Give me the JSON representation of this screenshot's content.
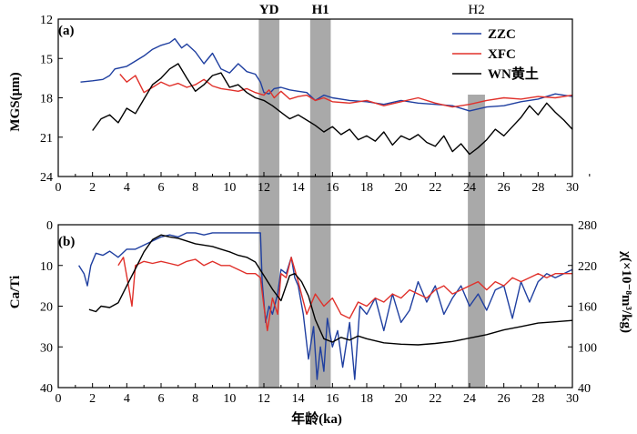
{
  "chart_data": [
    {
      "panel_label": "(a)",
      "type": "line",
      "ylabel": "MGS(μm)",
      "xlim": [
        0,
        30
      ],
      "ylim": [
        12,
        24
      ],
      "y_inverted": true,
      "yticks": [
        "12",
        "15",
        "18",
        "21",
        "24"
      ],
      "legend": {
        "placement": "top-right",
        "entries": [
          "ZZC",
          "XFC",
          "WN黄土"
        ]
      },
      "series": [
        {
          "name": "ZZC",
          "color": "#1f3fa0",
          "x": [
            1.3,
            2,
            2.6,
            3,
            3.3,
            4,
            4.5,
            5,
            5.5,
            6,
            6.5,
            6.8,
            7.2,
            7.5,
            8,
            8.5,
            9,
            9.5,
            10,
            10.5,
            11,
            11.5,
            11.8,
            12,
            12.3,
            12.6,
            13,
            13.5,
            14,
            14.5,
            15,
            15.5,
            16,
            17,
            18,
            19,
            20,
            21,
            22,
            23,
            24,
            25,
            26,
            27,
            28,
            29,
            30
          ],
          "y": [
            16.8,
            16.7,
            16.6,
            16.3,
            15.8,
            15.6,
            15.2,
            14.8,
            14.3,
            14.0,
            13.8,
            13.5,
            14.2,
            13.9,
            14.5,
            15.4,
            14.6,
            15.8,
            16.1,
            15.4,
            16.0,
            16.2,
            16.8,
            17.6,
            17.7,
            17.3,
            17.2,
            17.4,
            17.5,
            17.6,
            18.2,
            17.8,
            18.0,
            18.2,
            18.3,
            18.5,
            18.2,
            18.4,
            18.5,
            18.6,
            19.0,
            18.7,
            18.6,
            18.3,
            18.1,
            17.7,
            17.9
          ]
        },
        {
          "name": "XFC",
          "color": "#e0302a",
          "x": [
            3.6,
            4,
            4.5,
            5,
            5.5,
            6,
            6.5,
            7,
            7.5,
            8,
            8.5,
            9,
            9.5,
            10,
            10.5,
            11,
            11.5,
            12,
            12.3,
            12.6,
            13,
            13.5,
            14,
            14.5,
            15,
            15.5,
            16,
            17,
            18,
            19,
            20,
            21,
            22,
            23,
            24,
            25,
            26,
            27,
            28,
            29,
            30
          ],
          "y": [
            16.2,
            16.8,
            16.3,
            17.6,
            17.2,
            16.8,
            17.1,
            16.9,
            17.2,
            17.0,
            16.6,
            17.1,
            17.3,
            17.4,
            17.5,
            17.3,
            17.6,
            17.8,
            17.4,
            18.0,
            17.5,
            18.1,
            17.9,
            17.8,
            18.2,
            18.0,
            18.3,
            18.4,
            18.2,
            18.6,
            18.3,
            18.0,
            18.4,
            18.7,
            18.5,
            18.2,
            18.0,
            18.1,
            17.9,
            18.0,
            17.8
          ]
        },
        {
          "name": "WN黄土",
          "color": "#000000",
          "x": [
            2,
            2.5,
            3,
            3.5,
            4,
            4.5,
            5,
            5.5,
            6,
            6.5,
            7,
            7.5,
            8,
            8.5,
            9,
            9.5,
            10,
            10.5,
            11,
            11.5,
            12,
            12.5,
            13,
            13.5,
            14,
            14.5,
            15,
            15.5,
            16,
            16.5,
            17,
            17.5,
            18,
            18.5,
            19,
            19.5,
            20,
            20.5,
            21,
            21.5,
            22,
            22.5,
            23,
            23.5,
            24,
            24.5,
            25,
            25.5,
            26,
            26.5,
            27,
            27.5,
            28,
            28.5,
            29,
            29.5,
            30
          ],
          "y": [
            20.5,
            19.6,
            19.3,
            19.9,
            18.8,
            19.2,
            18.1,
            17.0,
            16.5,
            15.8,
            15.4,
            16.5,
            17.5,
            17.0,
            16.3,
            16.1,
            17.2,
            17.0,
            17.6,
            18.0,
            18.2,
            18.6,
            19.1,
            19.6,
            19.3,
            19.7,
            20.1,
            20.6,
            20.2,
            20.8,
            20.4,
            21.2,
            20.9,
            21.3,
            20.6,
            21.6,
            20.9,
            21.2,
            20.8,
            21.4,
            21.7,
            20.9,
            22.1,
            21.5,
            22.3,
            21.8,
            21.2,
            20.4,
            20.9,
            20.2,
            19.5,
            18.6,
            19.3,
            18.4,
            19.1,
            19.7,
            20.4
          ]
        }
      ]
    },
    {
      "panel_label": "(b)",
      "type": "line",
      "ylabel": "Ca/Ti",
      "y2label": "χ(×10⁻⁸m³/kg)",
      "xlabel": "年龄(ka)",
      "xlim": [
        0,
        30
      ],
      "ylim": [
        0,
        40
      ],
      "y_inverted": true,
      "y2lim": [
        40,
        280
      ],
      "yticks": [
        "0",
        "10",
        "20",
        "30",
        "40"
      ],
      "y2ticks": [
        "40",
        "100",
        "160",
        "220",
        "280"
      ],
      "series": [
        {
          "name": "ZZC",
          "axis": "left",
          "color": "#1f3fa0",
          "x": [
            1.2,
            1.5,
            1.7,
            1.9,
            2.2,
            2.6,
            3,
            3.5,
            4,
            4.5,
            5,
            5.5,
            6,
            6.5,
            7,
            7.5,
            8,
            8.5,
            9,
            9.5,
            10,
            10.5,
            11,
            11.5,
            11.8,
            11.9,
            12.1,
            12.3,
            12.5,
            12.8,
            13,
            13.3,
            13.6,
            13.8,
            14,
            14.3,
            14.6,
            14.9,
            15.1,
            15.3,
            15.5,
            15.7,
            16,
            16.3,
            16.6,
            17,
            17.3,
            17.6,
            18,
            18.5,
            19,
            19.5,
            20,
            20.5,
            21,
            21.5,
            22,
            22.5,
            23,
            23.5,
            24,
            24.5,
            25,
            25.5,
            26,
            26.5,
            27,
            27.5,
            28,
            28.5,
            29,
            29.5,
            30
          ],
          "y": [
            10,
            12,
            15,
            10,
            7,
            7.5,
            6.5,
            8,
            6,
            6,
            5,
            4,
            3,
            2.5,
            3,
            2,
            2,
            2.5,
            2,
            2,
            2,
            2,
            2,
            2,
            2,
            14,
            24,
            20,
            22,
            17,
            11,
            12,
            8,
            13,
            15,
            22,
            33,
            25,
            38,
            30,
            36,
            23,
            30,
            26,
            35,
            24,
            38,
            20,
            22,
            18,
            26,
            17,
            24,
            21,
            14,
            19,
            15,
            22,
            18,
            15,
            20,
            17,
            21,
            16,
            15,
            23,
            14,
            19,
            14,
            12,
            13,
            12,
            11
          ]
        },
        {
          "name": "XFC",
          "axis": "left",
          "color": "#e0302a",
          "x": [
            3.5,
            3.8,
            4.1,
            4.3,
            4.5,
            5,
            5.5,
            6,
            6.5,
            7,
            7.5,
            8,
            8.5,
            9,
            9.5,
            10,
            10.5,
            11,
            11.5,
            11.8,
            12,
            12.2,
            12.5,
            12.8,
            13,
            13.3,
            13.6,
            14,
            14.5,
            15,
            15.5,
            16,
            16.5,
            17,
            17.5,
            18,
            18.5,
            19,
            19.5,
            20,
            20.5,
            21,
            21.5,
            22,
            22.5,
            23,
            23.5,
            24,
            24.5,
            25,
            25.5,
            26,
            26.5,
            27,
            27.5,
            28,
            28.5,
            29,
            29.5,
            30
          ],
          "y": [
            10,
            8,
            15,
            20,
            10,
            9,
            9.5,
            9,
            9.5,
            10,
            9,
            8.5,
            10,
            9,
            10,
            10,
            11,
            12,
            12,
            13,
            20,
            26,
            18,
            22,
            12,
            13,
            8,
            14,
            22,
            17,
            20,
            18,
            22,
            23,
            19,
            20,
            18,
            19,
            17,
            18,
            16,
            17,
            18,
            16,
            15,
            17,
            16,
            15,
            14,
            16,
            14,
            15,
            13,
            14,
            13,
            12,
            13,
            12,
            12,
            12
          ]
        },
        {
          "name": "WN黄土",
          "axis": "right",
          "color": "#000000",
          "x": [
            1.8,
            2.2,
            2.5,
            3,
            3.5,
            4,
            4.5,
            5,
            5.5,
            6,
            6.5,
            7,
            7.5,
            8,
            8.5,
            9,
            9.5,
            10,
            10.5,
            11,
            11.5,
            12,
            12.5,
            13,
            13.5,
            13.8,
            14.2,
            14.6,
            15,
            15.5,
            16,
            16.5,
            17,
            17.5,
            18,
            19,
            20,
            21,
            22,
            23,
            24,
            25,
            26,
            27,
            28,
            29,
            30
          ],
          "y": [
            155,
            152,
            160,
            158,
            165,
            190,
            215,
            240,
            258,
            265,
            262,
            260,
            256,
            252,
            250,
            248,
            244,
            240,
            235,
            232,
            225,
            205,
            185,
            168,
            205,
            208,
            196,
            175,
            140,
            112,
            107,
            114,
            110,
            116,
            112,
            106,
            104,
            103,
            105,
            108,
            113,
            118,
            125,
            130,
            135,
            137,
            139
          ]
        }
      ]
    }
  ],
  "x_ticks": [
    "0",
    "2",
    "4",
    "6",
    "8",
    "10",
    "12",
    "14",
    "16",
    "18",
    "20",
    "22",
    "24",
    "26",
    "28",
    "30"
  ],
  "events": [
    {
      "label": "YD",
      "start_ka": 11.7,
      "end_ka": 12.9
    },
    {
      "label": "H1",
      "start_ka": 14.7,
      "end_ka": 15.9
    },
    {
      "label": "H2",
      "start_ka": 23.9,
      "end_ka": 24.9
    }
  ],
  "colors": {
    "band": "#a9a9a9"
  }
}
